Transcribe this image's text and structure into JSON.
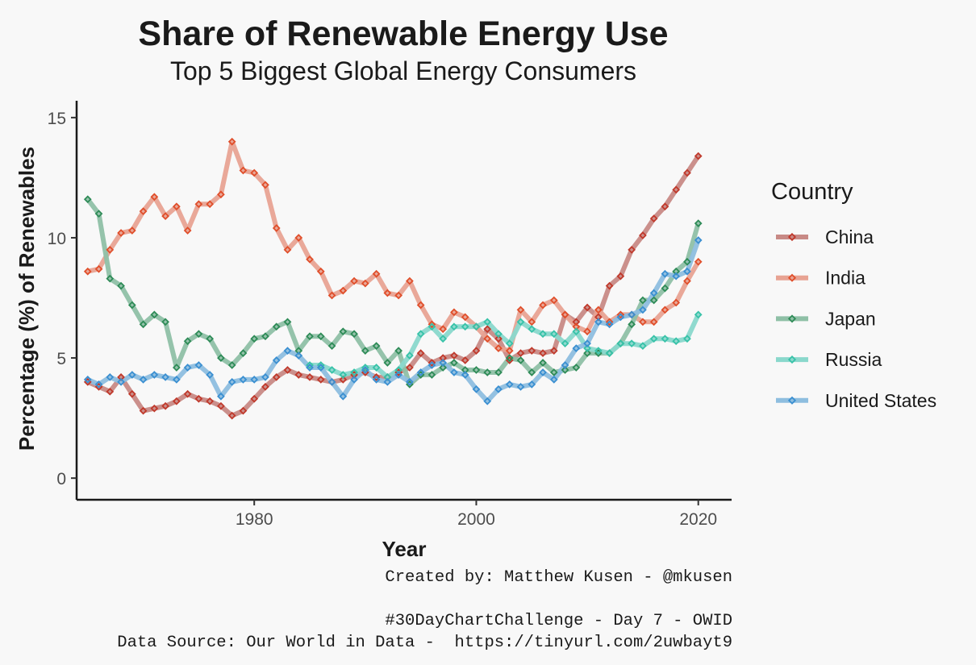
{
  "title": "Share of Renewable Energy Use",
  "subtitle": "Top 5 Biggest Global Energy Consumers",
  "captions": [
    "Created by: Matthew Kusen - @mkusen",
    "#30DayChartChallenge - Day 7 - OWID",
    "Data Source: Our World in Data -  https://tinyurl.com/2uwbayt9"
  ],
  "chart_data": {
    "type": "line",
    "xlabel": "Year",
    "ylabel": "Percentage (%) of Renewables",
    "xlim": [
      1964,
      2023
    ],
    "ylim": [
      -0.9,
      15.7
    ],
    "x_ticks": [
      1980,
      2000,
      2020
    ],
    "y_ticks": [
      0,
      5,
      10,
      15
    ],
    "grid": false,
    "legend_title": "Country",
    "legend_position": "right",
    "x": [
      1965,
      1966,
      1967,
      1968,
      1969,
      1970,
      1971,
      1972,
      1973,
      1974,
      1975,
      1976,
      1977,
      1978,
      1979,
      1980,
      1981,
      1982,
      1983,
      1984,
      1985,
      1986,
      1987,
      1988,
      1989,
      1990,
      1991,
      1992,
      1993,
      1994,
      1995,
      1996,
      1997,
      1998,
      1999,
      2000,
      2001,
      2002,
      2003,
      2004,
      2005,
      2006,
      2007,
      2008,
      2009,
      2010,
      2011,
      2012,
      2013,
      2014,
      2015,
      2016,
      2017,
      2018,
      2019,
      2020
    ],
    "series": [
      {
        "name": "China",
        "line_color": "#c88a86",
        "marker_color": "#c0392b",
        "values": [
          4.0,
          3.8,
          3.6,
          4.2,
          3.5,
          2.8,
          2.9,
          3.0,
          3.2,
          3.5,
          3.3,
          3.2,
          3.0,
          2.6,
          2.8,
          3.3,
          3.8,
          4.2,
          4.5,
          4.3,
          4.2,
          4.1,
          4.0,
          4.1,
          4.3,
          4.4,
          4.2,
          4.2,
          4.4,
          4.6,
          5.2,
          4.8,
          5.0,
          5.1,
          4.9,
          5.3,
          6.2,
          5.8,
          4.9,
          5.2,
          5.3,
          5.2,
          5.3,
          6.8,
          6.5,
          7.1,
          6.7,
          8.0,
          8.4,
          9.5,
          10.1,
          10.8,
          11.3,
          12.0,
          12.7,
          13.4
        ]
      },
      {
        "name": "India",
        "line_color": "#e8a393",
        "marker_color": "#e04e2a",
        "values": [
          8.6,
          8.7,
          9.5,
          10.2,
          10.3,
          11.1,
          11.7,
          10.9,
          11.3,
          10.3,
          11.4,
          11.4,
          11.8,
          14.0,
          12.8,
          12.7,
          12.2,
          10.4,
          9.5,
          10.0,
          9.1,
          8.6,
          7.6,
          7.8,
          8.2,
          8.1,
          8.5,
          7.7,
          7.6,
          8.2,
          7.2,
          6.4,
          6.2,
          6.9,
          6.7,
          6.3,
          5.8,
          5.4,
          5.3,
          7.0,
          6.5,
          7.2,
          7.4,
          6.8,
          6.3,
          6.1,
          7.0,
          6.5,
          6.8,
          6.8,
          6.5,
          6.5,
          7.0,
          7.3,
          8.2,
          9.0
        ]
      },
      {
        "name": "Japan",
        "line_color": "#8fc0a6",
        "marker_color": "#2e8b57",
        "values": [
          11.6,
          11.0,
          8.3,
          8.0,
          7.2,
          6.4,
          6.8,
          6.5,
          4.6,
          5.7,
          6.0,
          5.8,
          5.0,
          4.7,
          5.2,
          5.8,
          5.9,
          6.3,
          6.5,
          5.3,
          5.9,
          5.9,
          5.5,
          6.1,
          6.0,
          5.3,
          5.5,
          4.8,
          5.3,
          3.9,
          4.3,
          4.3,
          4.6,
          4.8,
          4.5,
          4.5,
          4.4,
          4.4,
          5.0,
          4.9,
          4.4,
          4.8,
          4.4,
          4.5,
          4.6,
          5.2,
          5.2,
          5.2,
          5.6,
          6.4,
          7.4,
          7.4,
          7.9,
          8.6,
          9.0,
          10.6
        ]
      },
      {
        "name": "Russia",
        "line_color": "#8ad8cc",
        "marker_color": "#37c2a8",
        "values": [
          null,
          null,
          null,
          null,
          null,
          null,
          null,
          null,
          null,
          null,
          null,
          null,
          null,
          null,
          null,
          null,
          null,
          null,
          null,
          null,
          4.7,
          4.7,
          4.5,
          4.3,
          4.4,
          4.6,
          4.6,
          4.2,
          4.5,
          5.1,
          6.0,
          6.3,
          5.8,
          6.3,
          6.3,
          6.3,
          6.5,
          6.0,
          5.6,
          6.5,
          6.2,
          6.0,
          6.0,
          5.6,
          6.1,
          5.4,
          5.3,
          5.2,
          5.6,
          5.6,
          5.5,
          5.8,
          5.8,
          5.7,
          5.8,
          6.8
        ]
      },
      {
        "name": "United States",
        "line_color": "#8ebedf",
        "marker_color": "#3a8fd1",
        "values": [
          4.1,
          3.9,
          4.2,
          4.0,
          4.3,
          4.1,
          4.3,
          4.2,
          4.1,
          4.6,
          4.7,
          4.3,
          3.4,
          4.0,
          4.1,
          4.1,
          4.2,
          4.9,
          5.3,
          5.1,
          4.6,
          4.6,
          4.0,
          3.4,
          4.1,
          4.5,
          4.1,
          4.0,
          4.3,
          4.0,
          4.4,
          4.7,
          4.8,
          4.4,
          4.3,
          3.7,
          3.2,
          3.7,
          3.9,
          3.8,
          3.9,
          4.4,
          4.1,
          4.7,
          5.4,
          5.6,
          6.5,
          6.4,
          6.7,
          6.8,
          7.0,
          7.7,
          8.5,
          8.4,
          8.6,
          9.9
        ]
      }
    ]
  }
}
